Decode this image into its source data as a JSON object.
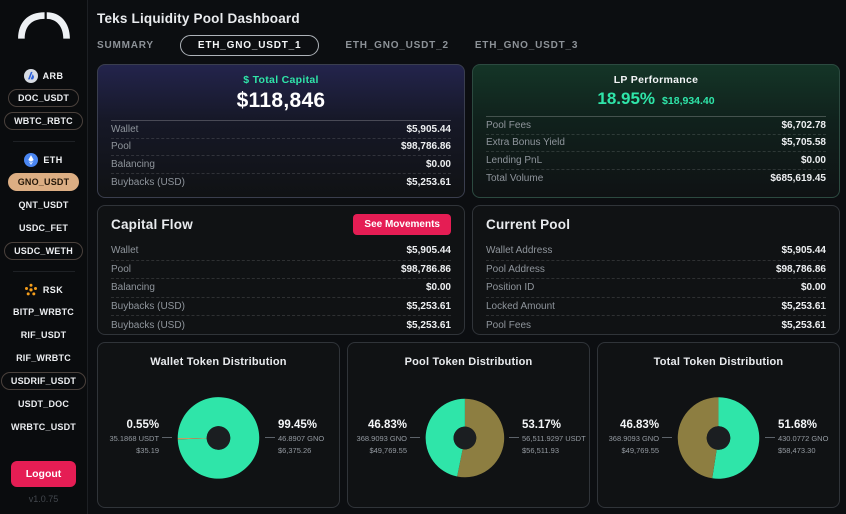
{
  "header": {
    "title": "Teks Liquidity Pool Dashboard"
  },
  "tabs": [
    {
      "label": "SUMMARY",
      "active": false
    },
    {
      "label": "ETH_GNO_USDT_1",
      "active": true
    },
    {
      "label": "ETH_GNO_USDT_2",
      "active": false
    },
    {
      "label": "ETH_GNO_USDT_3",
      "active": false
    }
  ],
  "sidebar": {
    "groups": [
      {
        "name": "ARB",
        "icon": "arbitrum-icon",
        "items": [
          {
            "label": "DOC_USDT",
            "style": "outlined"
          },
          {
            "label": "WBTC_RBTC",
            "style": "outlined"
          }
        ]
      },
      {
        "name": "ETH",
        "icon": "ethereum-icon",
        "items": [
          {
            "label": "GNO_USDT",
            "style": "active"
          },
          {
            "label": "QNT_USDT",
            "style": "plain"
          },
          {
            "label": "USDC_FET",
            "style": "plain"
          },
          {
            "label": "USDC_WETH",
            "style": "outlined"
          }
        ]
      },
      {
        "name": "RSK",
        "icon": "rsk-icon",
        "items": [
          {
            "label": "BITP_WRBTC",
            "style": "plain"
          },
          {
            "label": "RIF_USDT",
            "style": "plain"
          },
          {
            "label": "RIF_WRBTC",
            "style": "plain"
          },
          {
            "label": "USDRIF_USDT",
            "style": "outlined"
          },
          {
            "label": "USDT_DOC",
            "style": "plain"
          },
          {
            "label": "WRBTC_USDT",
            "style": "plain"
          }
        ]
      }
    ],
    "logout_label": "Logout",
    "version": "v1.0.75"
  },
  "cards": {
    "total_capital": {
      "title": "$ Total Capital",
      "value": "$118,846",
      "rows": [
        [
          "Wallet",
          "$5,905.44"
        ],
        [
          "Pool",
          "$98,786.86"
        ],
        [
          "Balancing",
          "$0.00"
        ],
        [
          "Buybacks (USD)",
          "$5,253.61"
        ]
      ]
    },
    "lp_performance": {
      "title": "LP Performance",
      "pct": "18.95%",
      "amount": "$18,934.40",
      "rows": [
        [
          "Pool Fees",
          "$6,702.78"
        ],
        [
          "Extra Bonus Yield",
          "$5,705.58"
        ],
        [
          "Lending PnL",
          "$0.00"
        ],
        [
          "Total Volume",
          "$685,619.45"
        ]
      ]
    },
    "capital_flow": {
      "title": "Capital Flow",
      "button_label": "See Movements",
      "rows": [
        [
          "Wallet",
          "$5,905.44"
        ],
        [
          "Pool",
          "$98,786.86"
        ],
        [
          "Balancing",
          "$0.00"
        ],
        [
          "Buybacks (USD)",
          "$5,253.61"
        ],
        [
          "Buybacks (USD)",
          "$5,253.61"
        ]
      ]
    },
    "current_pool": {
      "title": "Current Pool",
      "rows": [
        [
          "Wallet Address",
          "$5,905.44"
        ],
        [
          "Pool Address",
          "$98,786.86"
        ],
        [
          "Position ID",
          "$0.00"
        ],
        [
          "Locked Amount",
          "$5,253.61"
        ],
        [
          "Pool Fees",
          "$5,253.61"
        ]
      ]
    }
  },
  "chart_data": [
    {
      "type": "pie",
      "title": "Wallet Token Distribution",
      "start_angle": 180,
      "legend_position": "sides",
      "slices": [
        {
          "label": "GNO",
          "pct": 99.45,
          "amount": "46.8907 GNO",
          "usd": "$6,375.26",
          "color": "#2fe5a9",
          "side": "right"
        },
        {
          "label": "USDT",
          "pct": 0.55,
          "amount": "35.1868 USDT",
          "usd": "$35.19",
          "color": "#c89a62",
          "side": "left"
        }
      ]
    },
    {
      "type": "pie",
      "title": "Pool Token Distribution",
      "start_angle": -90,
      "legend_position": "sides",
      "slices": [
        {
          "label": "USDT",
          "pct": 53.17,
          "amount": "56,511.9297 USDT",
          "usd": "$56,511.93",
          "color": "#8d7e41",
          "side": "right"
        },
        {
          "label": "GNO",
          "pct": 46.83,
          "amount": "368.9093 GNO",
          "usd": "$49,769.55",
          "color": "#2fe5a9",
          "side": "left"
        }
      ]
    },
    {
      "type": "pie",
      "title": "Total Token Distribution",
      "start_angle": -90,
      "legend_position": "sides",
      "slices": [
        {
          "label": "GNO",
          "pct": 51.68,
          "amount": "430.0772 GNO",
          "usd": "$58,473.30",
          "color": "#2fe5a9",
          "side": "right"
        },
        {
          "label": "GNO",
          "pct": 46.83,
          "amount": "368.9093 GNO",
          "usd": "$49,769.55",
          "color": "#8d7e41",
          "side": "left"
        }
      ]
    }
  ],
  "colors": {
    "teal": "#2fe5a9",
    "gold": "#8d7e41",
    "crimson": "#e51d54",
    "active_pill": "#dcae83"
  }
}
